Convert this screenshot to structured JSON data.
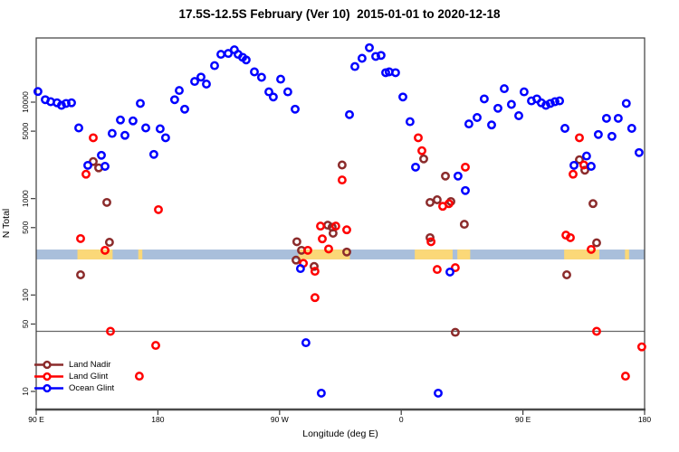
{
  "title": "17.5S-12.5S February (Ver 10)  2015-01-01 to 2020-12-18",
  "chart_data": {
    "type": "scatter",
    "title": "17.5S-12.5S February (Ver 10)  2015-01-01 to 2020-12-18",
    "xlabel": "Longitude (deg E)",
    "ylabel": "N Total",
    "x_axis": {
      "deg_range": [
        90,
        540
      ],
      "note": "longitude axis wraps eastward: 90E to 180 to 90W to 0 to 90E to 180",
      "ticks": [
        {
          "deg": 90,
          "label": "90 E"
        },
        {
          "deg": 180,
          "label": "180"
        },
        {
          "deg": 270,
          "label": "90 W"
        },
        {
          "deg": 360,
          "label": "0"
        },
        {
          "deg": 450,
          "label": "90 E"
        },
        {
          "deg": 540,
          "label": "180"
        }
      ]
    },
    "y_axis": {
      "scale": "log10",
      "range": [
        6.5,
        46000
      ],
      "ticks": [
        10,
        50,
        100,
        500,
        1000,
        5000,
        10000
      ]
    },
    "reference_line": {
      "n_value": 42,
      "color": "#666666"
    },
    "strip": {
      "description": "land/ocean map band of the 17.5S-12.5S latitude zone",
      "ocean_color": "#A9BFDB",
      "land_color": "#FBD878",
      "top_n": 296,
      "bottom_n": 234,
      "land_segments_deg": [
        [
          120.5,
          146.5
        ],
        [
          165.5,
          168.5
        ],
        [
          284,
          322
        ],
        [
          370,
          398
        ],
        [
          401.5,
          411
        ],
        [
          480.5,
          506.5
        ],
        [
          525.5,
          528.5
        ]
      ]
    },
    "legend_position": "bottom-left",
    "series": [
      {
        "name": "Land Nadir",
        "color": "#8B2B2B",
        "points": [
          [
            122.8,
            162
          ],
          [
            132.2,
            2420
          ],
          [
            136.2,
            2080
          ],
          [
            142.2,
            912
          ],
          [
            144.2,
            352
          ],
          [
            282.2,
            230
          ],
          [
            282.8,
            357
          ],
          [
            286.2,
            291
          ],
          [
            295.6,
            198
          ],
          [
            305.6,
            530
          ],
          [
            308.9,
            505
          ],
          [
            309.6,
            437
          ],
          [
            316.3,
            2230
          ],
          [
            319.7,
            279
          ],
          [
            376.6,
            2580
          ],
          [
            381.3,
            912
          ],
          [
            381.3,
            393
          ],
          [
            386.6,
            971
          ],
          [
            392.7,
            1710
          ],
          [
            396.7,
            932
          ],
          [
            400.0,
            41
          ],
          [
            406.7,
            541
          ],
          [
            482.4,
            162
          ],
          [
            491.8,
            2530
          ],
          [
            495.8,
            1970
          ],
          [
            501.8,
            888
          ],
          [
            504.5,
            348
          ]
        ]
      },
      {
        "name": "Land Glint",
        "color": "#FF0000",
        "points": [
          [
            122.8,
            385
          ],
          [
            126.8,
            1790
          ],
          [
            132.2,
            4270
          ],
          [
            140.9,
            291
          ],
          [
            144.9,
            42
          ],
          [
            166.3,
            14.4
          ],
          [
            178.4,
            30
          ],
          [
            180.4,
            768
          ],
          [
            287.6,
            213
          ],
          [
            290.9,
            291
          ],
          [
            296.2,
            176
          ],
          [
            296.2,
            94
          ],
          [
            300.3,
            518
          ],
          [
            301.6,
            382
          ],
          [
            306.3,
            300
          ],
          [
            311.6,
            518
          ],
          [
            316.3,
            1560
          ],
          [
            319.7,
            475
          ],
          [
            372.6,
            4270
          ],
          [
            375.3,
            3140
          ],
          [
            382.0,
            357
          ],
          [
            386.6,
            184
          ],
          [
            390.7,
            832
          ],
          [
            395.3,
            886
          ],
          [
            400.0,
            192
          ],
          [
            407.4,
            2120
          ],
          [
            481.8,
            418
          ],
          [
            485.1,
            393
          ],
          [
            487.1,
            1790
          ],
          [
            491.8,
            4270
          ],
          [
            495.1,
            2230
          ],
          [
            500.5,
            297
          ],
          [
            504.5,
            42
          ],
          [
            525.9,
            14.4
          ],
          [
            537.9,
            29
          ]
        ]
      },
      {
        "name": "Ocean Glint",
        "color": "#0000FF",
        "points": [
          [
            91.3,
            12900
          ],
          [
            96.7,
            10600
          ],
          [
            100.7,
            10100
          ],
          [
            105.4,
            9860
          ],
          [
            108.7,
            9270
          ],
          [
            112.1,
            9700
          ],
          [
            116.1,
            9860
          ],
          [
            121.5,
            5400
          ],
          [
            128.2,
            2210
          ],
          [
            138.2,
            2810
          ],
          [
            140.9,
            2160
          ],
          [
            146.2,
            4740
          ],
          [
            152.3,
            6530
          ],
          [
            155.6,
            4530
          ],
          [
            161.6,
            6390
          ],
          [
            167.0,
            9700
          ],
          [
            171.0,
            5400
          ],
          [
            177.0,
            2870
          ],
          [
            181.7,
            5290
          ],
          [
            185.7,
            4270
          ],
          [
            192.4,
            10600
          ],
          [
            195.8,
            13200
          ],
          [
            199.8,
            8450
          ],
          [
            207.2,
            16400
          ],
          [
            211.9,
            18200
          ],
          [
            215.9,
            15400
          ],
          [
            221.9,
            23900
          ],
          [
            226.6,
            31300
          ],
          [
            232.0,
            32000
          ],
          [
            236.6,
            34900
          ],
          [
            239.3,
            31300
          ],
          [
            242.7,
            29200
          ],
          [
            245.3,
            27400
          ],
          [
            251.4,
            20600
          ],
          [
            256.7,
            18100
          ],
          [
            262.1,
            12800
          ],
          [
            265.4,
            11300
          ],
          [
            270.8,
            17300
          ],
          [
            276.1,
            12800
          ],
          [
            281.5,
            8450
          ],
          [
            285.5,
            188
          ],
          [
            289.5,
            32
          ],
          [
            300.9,
            9.6
          ],
          [
            321.7,
            7420
          ],
          [
            325.7,
            23400
          ],
          [
            331.0,
            28500
          ],
          [
            336.4,
            36700
          ],
          [
            341.1,
            29800
          ],
          [
            345.1,
            30500
          ],
          [
            348.5,
            20200
          ],
          [
            351.1,
            20600
          ],
          [
            355.8,
            20200
          ],
          [
            361.2,
            11300
          ],
          [
            366.5,
            6280
          ],
          [
            370.6,
            2120
          ],
          [
            387.3,
            9.6
          ],
          [
            396.0,
            173
          ],
          [
            402.0,
            1710
          ],
          [
            407.4,
            1210
          ],
          [
            410.0,
            5940
          ],
          [
            416.1,
            6930
          ],
          [
            421.4,
            10800
          ],
          [
            426.8,
            5810
          ],
          [
            431.5,
            8630
          ],
          [
            436.2,
            13800
          ],
          [
            441.5,
            9480
          ],
          [
            446.9,
            7230
          ],
          [
            450.9,
            12800
          ],
          [
            456.3,
            10300
          ],
          [
            460.3,
            10800
          ],
          [
            463.6,
            9860
          ],
          [
            467.0,
            9270
          ],
          [
            470.3,
            9700
          ],
          [
            473.7,
            10100
          ],
          [
            477.1,
            10300
          ],
          [
            481.1,
            5350
          ],
          [
            487.8,
            2210
          ],
          [
            497.1,
            2760
          ],
          [
            500.5,
            2160
          ],
          [
            505.8,
            4620
          ],
          [
            511.8,
            6800
          ],
          [
            515.8,
            4420
          ],
          [
            520.5,
            6800
          ],
          [
            526.5,
            9700
          ],
          [
            530.5,
            5350
          ],
          [
            535.9,
            3000
          ]
        ]
      }
    ]
  }
}
